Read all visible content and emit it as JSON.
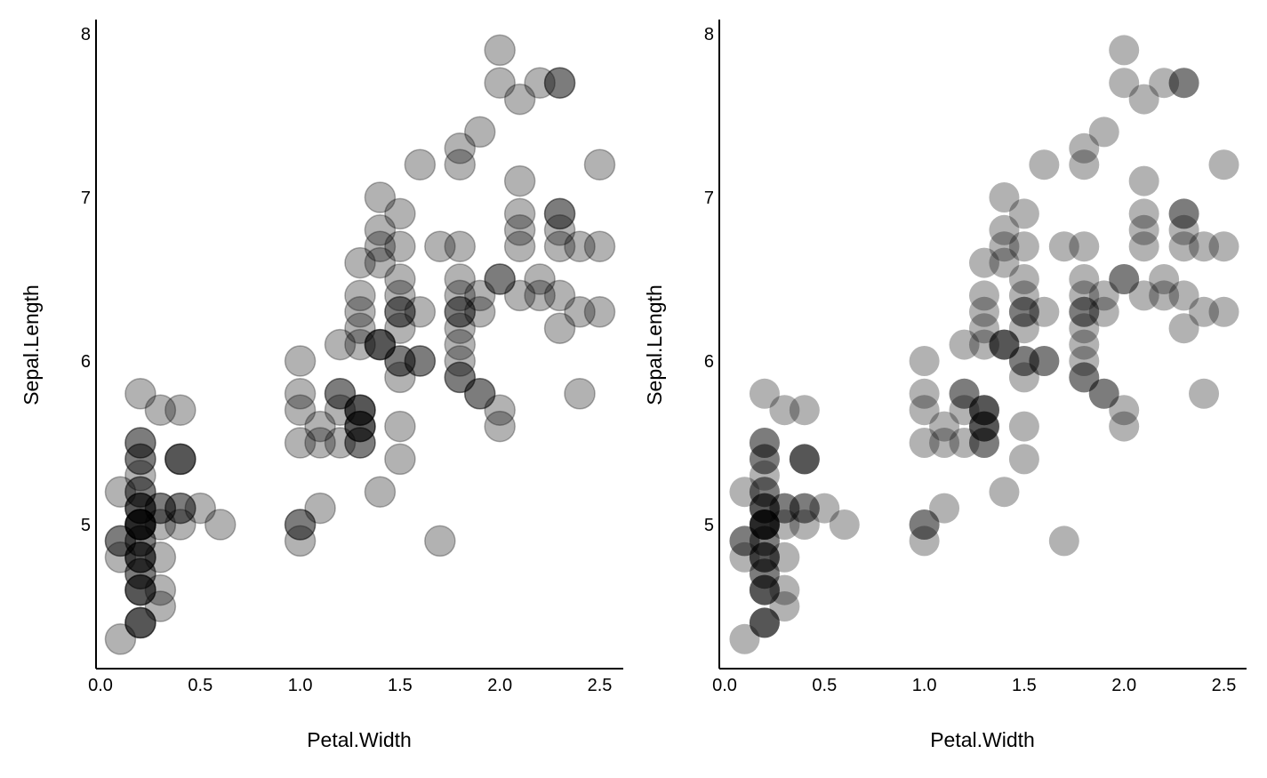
{
  "chart_data": [
    {
      "type": "scatter",
      "panel": "left",
      "point_style": "stroked",
      "xlabel": "Petal.Width",
      "ylabel": "Sepal.Length",
      "xlim": [
        0,
        2.6
      ],
      "ylim": [
        4.2,
        8.1
      ],
      "xticks": [
        "0.0",
        "0.5",
        "1.0",
        "1.5",
        "2.0",
        "2.5"
      ],
      "yticks": [
        "5",
        "6",
        "7",
        "8"
      ],
      "grid": false
    },
    {
      "type": "scatter",
      "panel": "right",
      "point_style": "no-stroke",
      "xlabel": "Petal.Width",
      "ylabel": "Sepal.Length",
      "xlim": [
        0,
        2.6
      ],
      "ylim": [
        4.2,
        8.1
      ],
      "xticks": [
        "0.0",
        "0.5",
        "1.0",
        "1.5",
        "2.0",
        "2.5"
      ],
      "yticks": [
        "5",
        "6",
        "7",
        "8"
      ],
      "grid": false
    }
  ],
  "points": [
    [
      0.2,
      5.1
    ],
    [
      0.2,
      4.9
    ],
    [
      0.2,
      4.7
    ],
    [
      0.2,
      4.6
    ],
    [
      0.2,
      5.0
    ],
    [
      0.4,
      5.4
    ],
    [
      0.3,
      4.6
    ],
    [
      0.2,
      5.0
    ],
    [
      0.2,
      4.4
    ],
    [
      0.1,
      4.9
    ],
    [
      0.2,
      5.4
    ],
    [
      0.2,
      4.8
    ],
    [
      0.1,
      4.8
    ],
    [
      0.1,
      4.3
    ],
    [
      0.2,
      5.8
    ],
    [
      0.4,
      5.7
    ],
    [
      0.4,
      5.4
    ],
    [
      0.3,
      5.1
    ],
    [
      0.3,
      5.7
    ],
    [
      0.3,
      5.1
    ],
    [
      0.2,
      5.4
    ],
    [
      0.4,
      5.1
    ],
    [
      0.2,
      4.6
    ],
    [
      0.5,
      5.1
    ],
    [
      0.2,
      4.8
    ],
    [
      0.2,
      5.0
    ],
    [
      0.4,
      5.0
    ],
    [
      0.2,
      5.2
    ],
    [
      0.2,
      5.2
    ],
    [
      0.2,
      4.7
    ],
    [
      0.2,
      4.8
    ],
    [
      0.4,
      5.4
    ],
    [
      0.1,
      5.2
    ],
    [
      0.2,
      5.5
    ],
    [
      0.2,
      4.9
    ],
    [
      0.2,
      5.0
    ],
    [
      0.2,
      5.5
    ],
    [
      0.1,
      4.9
    ],
    [
      0.2,
      4.4
    ],
    [
      0.2,
      5.1
    ],
    [
      0.3,
      5.0
    ],
    [
      0.3,
      4.5
    ],
    [
      0.2,
      4.4
    ],
    [
      0.6,
      5.0
    ],
    [
      0.4,
      5.1
    ],
    [
      0.3,
      4.8
    ],
    [
      0.2,
      5.1
    ],
    [
      0.2,
      4.6
    ],
    [
      0.2,
      5.3
    ],
    [
      0.2,
      5.0
    ],
    [
      1.4,
      7.0
    ],
    [
      1.5,
      6.4
    ],
    [
      1.5,
      6.9
    ],
    [
      1.3,
      5.5
    ],
    [
      1.5,
      6.5
    ],
    [
      1.3,
      5.7
    ],
    [
      1.6,
      6.3
    ],
    [
      1.0,
      4.9
    ],
    [
      1.3,
      6.6
    ],
    [
      1.4,
      5.2
    ],
    [
      1.0,
      5.0
    ],
    [
      1.5,
      5.9
    ],
    [
      1.0,
      6.0
    ],
    [
      1.4,
      6.1
    ],
    [
      1.3,
      5.6
    ],
    [
      1.4,
      6.7
    ],
    [
      1.5,
      5.6
    ],
    [
      1.0,
      5.8
    ],
    [
      1.5,
      6.2
    ],
    [
      1.1,
      5.6
    ],
    [
      1.8,
      5.9
    ],
    [
      1.3,
      6.1
    ],
    [
      1.5,
      6.3
    ],
    [
      1.2,
      6.1
    ],
    [
      1.3,
      6.4
    ],
    [
      1.4,
      6.6
    ],
    [
      1.4,
      6.8
    ],
    [
      1.7,
      6.7
    ],
    [
      1.5,
      6.0
    ],
    [
      1.0,
      5.7
    ],
    [
      1.1,
      5.5
    ],
    [
      1.0,
      5.5
    ],
    [
      1.2,
      5.8
    ],
    [
      1.6,
      6.0
    ],
    [
      1.5,
      5.4
    ],
    [
      1.6,
      6.0
    ],
    [
      1.5,
      6.7
    ],
    [
      1.3,
      6.3
    ],
    [
      1.3,
      5.6
    ],
    [
      1.3,
      5.5
    ],
    [
      1.2,
      5.5
    ],
    [
      1.4,
      6.1
    ],
    [
      1.2,
      5.8
    ],
    [
      1.0,
      5.0
    ],
    [
      1.3,
      5.6
    ],
    [
      1.2,
      5.7
    ],
    [
      1.3,
      5.7
    ],
    [
      1.3,
      6.2
    ],
    [
      1.1,
      5.1
    ],
    [
      1.3,
      5.7
    ],
    [
      2.5,
      6.3
    ],
    [
      1.9,
      5.8
    ],
    [
      2.1,
      7.1
    ],
    [
      1.8,
      6.3
    ],
    [
      2.2,
      6.5
    ],
    [
      2.1,
      7.6
    ],
    [
      1.7,
      4.9
    ],
    [
      1.8,
      7.3
    ],
    [
      1.8,
      6.7
    ],
    [
      2.5,
      7.2
    ],
    [
      2.0,
      6.5
    ],
    [
      1.9,
      6.4
    ],
    [
      2.1,
      6.8
    ],
    [
      2.0,
      5.7
    ],
    [
      2.4,
      5.8
    ],
    [
      2.3,
      6.4
    ],
    [
      1.8,
      6.5
    ],
    [
      2.2,
      7.7
    ],
    [
      2.3,
      7.7
    ],
    [
      1.5,
      6.0
    ],
    [
      2.3,
      6.9
    ],
    [
      2.0,
      5.6
    ],
    [
      2.0,
      7.7
    ],
    [
      1.8,
      6.3
    ],
    [
      2.1,
      6.7
    ],
    [
      1.8,
      7.2
    ],
    [
      1.8,
      6.2
    ],
    [
      1.8,
      6.1
    ],
    [
      2.1,
      6.4
    ],
    [
      1.6,
      7.2
    ],
    [
      1.9,
      7.4
    ],
    [
      2.0,
      7.9
    ],
    [
      2.2,
      6.4
    ],
    [
      1.5,
      6.3
    ],
    [
      1.4,
      6.1
    ],
    [
      2.3,
      7.7
    ],
    [
      2.4,
      6.3
    ],
    [
      1.8,
      6.4
    ],
    [
      1.8,
      6.0
    ],
    [
      2.1,
      6.9
    ],
    [
      2.4,
      6.7
    ],
    [
      2.3,
      6.9
    ],
    [
      1.9,
      5.8
    ],
    [
      2.3,
      6.8
    ],
    [
      2.5,
      6.7
    ],
    [
      2.3,
      6.7
    ],
    [
      1.9,
      6.3
    ],
    [
      2.0,
      6.5
    ],
    [
      2.3,
      6.2
    ],
    [
      1.8,
      5.9
    ]
  ]
}
